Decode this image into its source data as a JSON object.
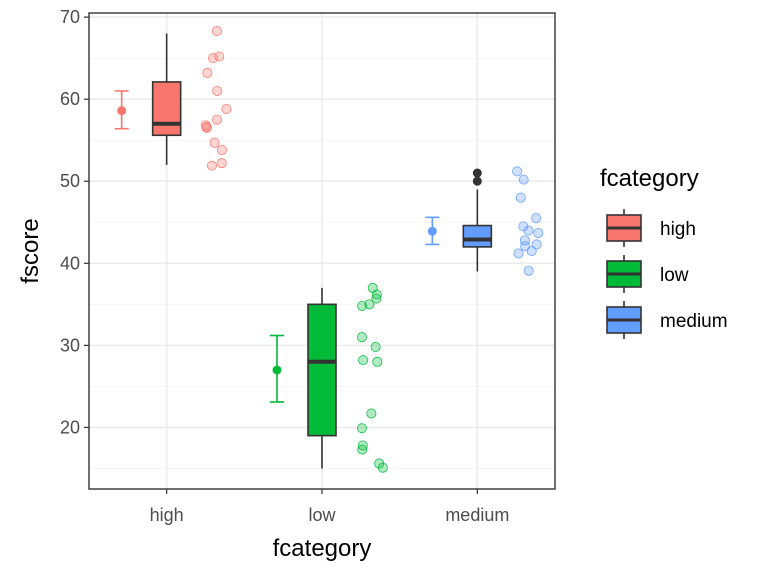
{
  "chart_data": {
    "type": "boxplot",
    "xlabel": "fcategory",
    "ylabel": "fscore",
    "ylim": [
      12.5,
      70.5
    ],
    "y_ticks": [
      20,
      30,
      40,
      50,
      60,
      70
    ],
    "grid": true,
    "legend_position": "right",
    "legend_title": "fcategory",
    "categories": [
      "high",
      "low",
      "medium"
    ],
    "colors": {
      "high": "#F8766D",
      "low": "#00BA38",
      "medium": "#619CFF"
    },
    "groups": [
      {
        "name": "high",
        "box": {
          "min": 52,
          "q1": 55.6,
          "median": 57,
          "q3": 62.1,
          "max": 68
        },
        "outliers": [],
        "mean": 58.6,
        "ci": [
          56.4,
          61
        ],
        "points": [
          68.3,
          65.2,
          65.0,
          63.2,
          61.0,
          58.8,
          57.5,
          56.8,
          56.6,
          56.5,
          54.7,
          53.8,
          52.2,
          51.9
        ]
      },
      {
        "name": "low",
        "box": {
          "min": 15,
          "q1": 19,
          "median": 28,
          "q3": 35,
          "max": 37
        },
        "outliers": [],
        "mean": 27,
        "ci": [
          23.1,
          31.2
        ],
        "points": [
          37.0,
          36.2,
          35.7,
          35.0,
          34.8,
          31.0,
          29.8,
          28.2,
          28.0,
          21.7,
          19.9,
          17.8,
          17.3,
          15.6,
          15.1
        ]
      },
      {
        "name": "medium",
        "box": {
          "min": 39,
          "q1": 42,
          "median": 42.9,
          "q3": 44.6,
          "max": 49
        },
        "outliers": [
          51,
          50
        ],
        "mean": 43.9,
        "ci": [
          42.3,
          45.6
        ],
        "points": [
          51.2,
          50.2,
          48.0,
          45.5,
          44.5,
          44.0,
          43.7,
          42.8,
          42.3,
          42.1,
          41.5,
          41.2,
          39.1
        ]
      }
    ]
  }
}
